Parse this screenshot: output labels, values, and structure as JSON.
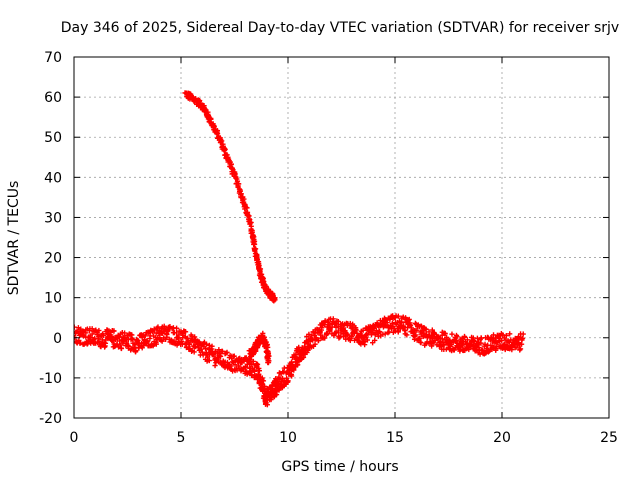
{
  "chart_data": {
    "type": "scatter",
    "title": "Day 346 of 2025, Sidereal Day-to-day VTEC variation (SDTVAR) for receiver srjv",
    "xlabel": "GPS time / hours",
    "ylabel": "SDTVAR / TECUs",
    "xlim": [
      0,
      25
    ],
    "ylim": [
      -20,
      70
    ],
    "xticks": [
      0,
      5,
      10,
      15,
      20,
      25
    ],
    "yticks": [
      -20,
      -10,
      0,
      10,
      20,
      30,
      40,
      50,
      60,
      70
    ],
    "grid": true,
    "series": [
      {
        "name": "steep descending arc",
        "color": "#ff0000",
        "spread": 0.8,
        "points": [
          [
            5.2,
            60.8
          ],
          [
            5.6,
            59.5
          ],
          [
            6.0,
            57.8
          ],
          [
            6.4,
            54.0
          ],
          [
            6.8,
            49.5
          ],
          [
            7.2,
            44.5
          ],
          [
            7.6,
            39.0
          ],
          [
            8.0,
            33.0
          ],
          [
            8.3,
            27.0
          ],
          [
            8.5,
            21.0
          ],
          [
            8.7,
            16.0
          ],
          [
            8.9,
            12.5
          ],
          [
            9.2,
            10.5
          ],
          [
            9.4,
            9.8
          ]
        ]
      },
      {
        "name": "near-zero band",
        "color": "#ff0000",
        "spread": 2.2,
        "points": [
          [
            0.0,
            1.0
          ],
          [
            0.5,
            0.5
          ],
          [
            1.0,
            0.0
          ],
          [
            1.5,
            -0.2
          ],
          [
            2.0,
            -0.3
          ],
          [
            2.5,
            -0.8
          ],
          [
            3.0,
            -1.5
          ],
          [
            3.5,
            -0.5
          ],
          [
            4.0,
            1.0
          ],
          [
            4.5,
            1.0
          ],
          [
            5.0,
            0.0
          ],
          [
            5.5,
            -1.5
          ],
          [
            6.0,
            -3.0
          ],
          [
            6.5,
            -4.5
          ],
          [
            7.0,
            -5.5
          ],
          [
            7.5,
            -6.5
          ],
          [
            8.0,
            -7.0
          ],
          [
            8.5,
            -8.0
          ],
          [
            8.8,
            -12.0
          ],
          [
            9.0,
            -15.0
          ],
          [
            9.3,
            -13.0
          ],
          [
            9.6,
            -11.0
          ],
          [
            10.0,
            -9.0
          ],
          [
            10.3,
            -6.0
          ],
          [
            10.6,
            -3.5
          ],
          [
            11.0,
            -1.0
          ],
          [
            11.5,
            1.5
          ],
          [
            12.0,
            3.0
          ],
          [
            12.5,
            1.5
          ],
          [
            13.0,
            1.5
          ],
          [
            13.5,
            0.0
          ],
          [
            14.0,
            1.0
          ],
          [
            14.5,
            3.0
          ],
          [
            15.0,
            3.5
          ],
          [
            15.5,
            3.0
          ],
          [
            16.0,
            1.5
          ],
          [
            16.5,
            0.0
          ],
          [
            17.0,
            -0.5
          ],
          [
            17.5,
            -1.0
          ],
          [
            18.0,
            -1.5
          ],
          [
            18.5,
            -2.0
          ],
          [
            19.0,
            -2.0
          ],
          [
            19.5,
            -1.5
          ],
          [
            20.0,
            -1.0
          ],
          [
            20.5,
            -1.0
          ],
          [
            21.0,
            -1.0
          ]
        ]
      },
      {
        "name": "late-morning dip branch",
        "color": "#ff0000",
        "spread": 1.2,
        "points": [
          [
            8.2,
            -4.5
          ],
          [
            8.5,
            -2.0
          ],
          [
            8.8,
            0.2
          ],
          [
            9.0,
            -2.5
          ],
          [
            9.1,
            -6.0
          ]
        ]
      }
    ]
  }
}
